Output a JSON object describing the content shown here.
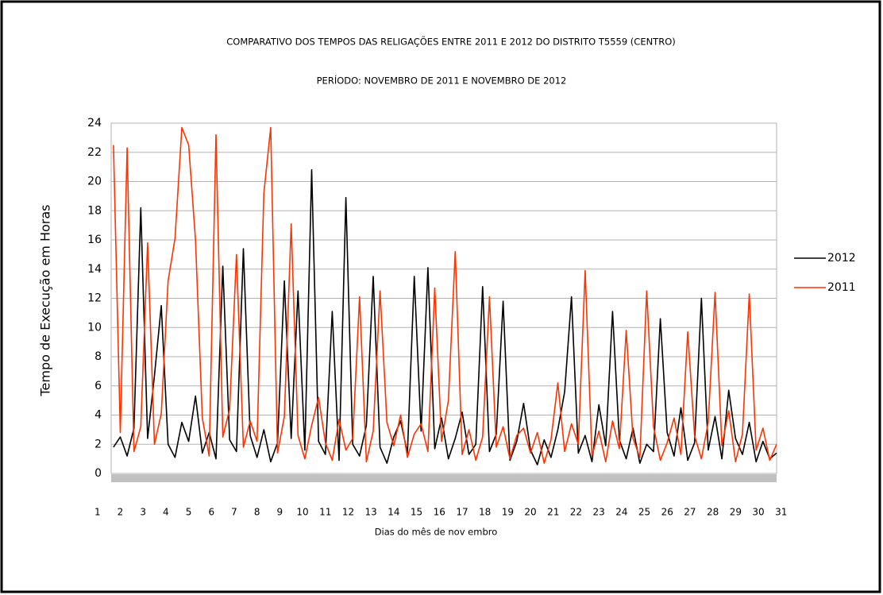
{
  "chart_data": {
    "type": "line",
    "title": "COMPARATIVO DOS TEMPOS  DAS RELIGAÇÕES ENTRE 2011 E 2012 DO DISTRITO T5559 (CENTRO)",
    "subtitle": "PERÍODO: NOVEMBRO DE 2011 E NOVEMBRO DE 2012",
    "x_label": "Dias  do mês  de nov embro",
    "y_label": "Tempo de Execução em Horas",
    "x": [
      1.7,
      2.0,
      2.3,
      2.6,
      2.9,
      3.2,
      3.5,
      3.8,
      4.1,
      4.4,
      4.7,
      5.0,
      5.3,
      5.6,
      5.9,
      6.2,
      6.5,
      6.8,
      7.1,
      7.4,
      7.7,
      8.0,
      8.3,
      8.6,
      8.9,
      9.2,
      9.5,
      9.8,
      10.1,
      10.4,
      10.7,
      11.0,
      11.3,
      11.6,
      11.9,
      12.2,
      12.5,
      12.8,
      13.1,
      13.4,
      13.7,
      14.0,
      14.3,
      14.6,
      14.9,
      15.2,
      15.5,
      15.8,
      16.1,
      16.4,
      16.7,
      17.0,
      17.3,
      17.6,
      17.9,
      18.2,
      18.5,
      18.8,
      19.1,
      19.4,
      19.7,
      20.0,
      20.3,
      20.6,
      20.9,
      21.2,
      21.5,
      21.8,
      22.1,
      22.4,
      22.7,
      23.0,
      23.3,
      23.6,
      23.9,
      24.2,
      24.5,
      24.8,
      25.1,
      25.4,
      25.7,
      26.0,
      26.3,
      26.6,
      26.9,
      27.2,
      27.5,
      27.8,
      28.1,
      28.4,
      28.7,
      29.0,
      29.3,
      29.6,
      29.9,
      30.2,
      30.5,
      30.8
    ],
    "series": [
      {
        "name": "2012",
        "color": "#000000",
        "values": [
          1.8,
          2.5,
          1.2,
          3.1,
          18.2,
          2.4,
          6.7,
          11.5,
          2.0,
          1.1,
          3.5,
          2.2,
          5.3,
          1.4,
          2.8,
          1.0,
          14.2,
          2.3,
          1.5,
          15.4,
          2.6,
          1.1,
          3.0,
          0.8,
          2.1,
          13.2,
          2.4,
          12.5,
          1.6,
          20.8,
          2.2,
          1.3,
          11.1,
          0.9,
          18.9,
          2.0,
          1.2,
          3.3,
          13.5,
          1.8,
          0.7,
          2.5,
          3.6,
          1.4,
          13.5,
          2.9,
          14.1,
          1.7,
          3.8,
          1.0,
          2.4,
          4.2,
          1.3,
          2.0,
          12.8,
          1.5,
          2.7,
          11.8,
          0.9,
          2.2,
          4.8,
          1.6,
          0.6,
          2.3,
          1.1,
          3.0,
          5.6,
          12.1,
          1.4,
          2.6,
          0.8,
          4.7,
          1.9,
          11.1,
          2.3,
          1.0,
          3.1,
          0.7,
          2.0,
          1.5,
          10.6,
          2.8,
          1.2,
          4.5,
          0.9,
          2.1,
          12.0,
          1.6,
          3.9,
          1.0,
          5.7,
          2.4,
          1.3,
          3.5,
          0.8,
          2.2,
          1.0,
          1.4
        ]
      },
      {
        "name": "2011",
        "color": "#ff3300",
        "values": [
          22.5,
          2.8,
          22.3,
          1.5,
          3.2,
          15.8,
          2.0,
          4.1,
          13.2,
          16.1,
          23.7,
          22.5,
          16.0,
          3.8,
          1.2,
          23.2,
          2.5,
          4.4,
          15.0,
          1.8,
          3.6,
          2.2,
          19.2,
          23.7,
          1.4,
          3.9,
          17.1,
          2.6,
          1.0,
          3.3,
          5.2,
          2.1,
          0.9,
          3.7,
          1.6,
          2.4,
          12.1,
          0.8,
          2.9,
          12.5,
          3.5,
          1.9,
          4.0,
          1.1,
          2.7,
          3.4,
          1.5,
          12.7,
          2.2,
          5.0,
          15.2,
          1.3,
          3.0,
          0.9,
          2.5,
          12.1,
          1.8,
          3.2,
          1.0,
          2.6,
          3.1,
          1.4,
          2.8,
          0.7,
          2.3,
          6.2,
          1.5,
          3.4,
          2.0,
          13.9,
          1.2,
          2.9,
          0.8,
          3.6,
          1.7,
          9.8,
          2.4,
          1.1,
          12.5,
          3.2,
          0.9,
          2.1,
          3.8,
          1.3,
          9.7,
          2.6,
          1.0,
          3.5,
          12.4,
          1.9,
          4.3,
          0.8,
          2.7,
          12.3,
          1.6,
          3.1,
          0.9,
          2.0
        ]
      }
    ],
    "xlim": [
      1.6,
      30.8
    ],
    "xticks": [
      1,
      2,
      3,
      4,
      5,
      6,
      7,
      8,
      9,
      10,
      11,
      12,
      13,
      14,
      15,
      16,
      17,
      18,
      19,
      20,
      21,
      22,
      23,
      24,
      25,
      26,
      27,
      28,
      29,
      30,
      31
    ],
    "ylim": [
      0,
      24
    ],
    "yticks": [
      0,
      2,
      4,
      6,
      8,
      10,
      12,
      14,
      16,
      18,
      20,
      22,
      24
    ],
    "grid": true
  }
}
